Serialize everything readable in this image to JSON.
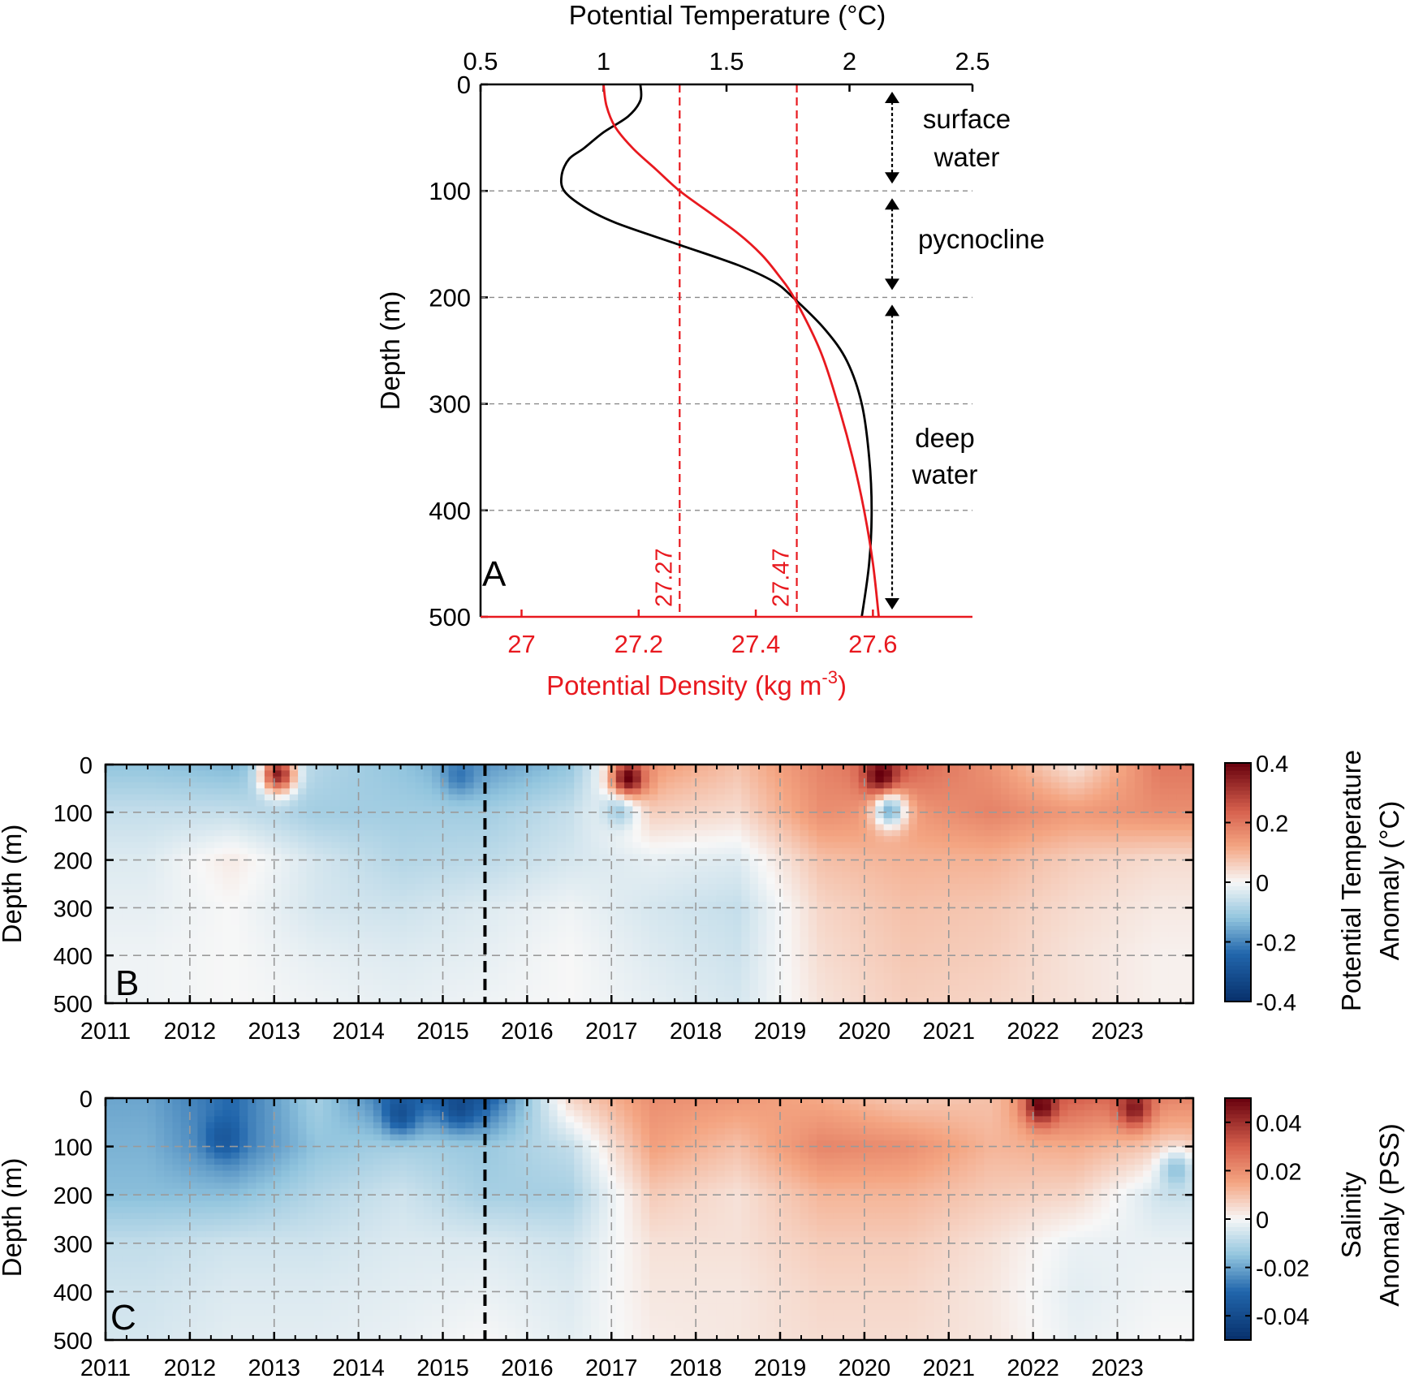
{
  "colors": {
    "temp_line": "#000000",
    "density_line": "#e8191f",
    "neg": "#08306b",
    "pos": "#67000d",
    "grid": "#8a8a8a"
  },
  "chart_data": [
    {
      "id": "A",
      "panel_letter": "A",
      "type": "line",
      "title": "Potential Temperature (°C)",
      "xlabel_top": "Potential Temperature (°C)",
      "xlim_top": [
        0.5,
        2.5
      ],
      "xticks_top": [
        "0.5",
        "1",
        "1.5",
        "2",
        "2.5"
      ],
      "xlabel_bottom": "Potential Density (kg m-3)",
      "xlabel_bottom_main": "Potential Density (kg m",
      "xlabel_bottom_sup": "-3",
      "xlabel_bottom_close": ")",
      "xlim_bottom": [
        26.93,
        27.77
      ],
      "xticks_bottom": [
        "27",
        "27.2",
        "27.4",
        "27.6"
      ],
      "ylabel": "Depth (m)",
      "ylim": [
        0,
        500
      ],
      "yticks": [
        "0",
        "100",
        "200",
        "300",
        "400",
        "500"
      ],
      "isopycnals": [
        {
          "density": 27.27,
          "label": "27.27"
        },
        {
          "density": 27.47,
          "label": "27.47"
        }
      ],
      "layers": [
        {
          "name": "surface-water",
          "lines": [
            "surface",
            "water"
          ],
          "top": 0,
          "bottom": 100
        },
        {
          "name": "pycnocline",
          "lines": [
            "pycnocline"
          ],
          "top": 100,
          "bottom": 200
        },
        {
          "name": "deep-water",
          "lines": [
            "deep",
            "water"
          ],
          "top": 200,
          "bottom": 500
        }
      ],
      "series": [
        {
          "name": "Potential Temperature",
          "axis": "top",
          "points": [
            [
              0,
              1.15
            ],
            [
              15,
              1.15
            ],
            [
              30,
              1.1
            ],
            [
              45,
              1.0
            ],
            [
              60,
              0.92
            ],
            [
              70,
              0.86
            ],
            [
              85,
              0.83
            ],
            [
              100,
              0.84
            ],
            [
              115,
              0.92
            ],
            [
              130,
              1.05
            ],
            [
              150,
              1.3
            ],
            [
              170,
              1.55
            ],
            [
              185,
              1.69
            ],
            [
              200,
              1.77
            ],
            [
              230,
              1.9
            ],
            [
              260,
              1.99
            ],
            [
              300,
              2.05
            ],
            [
              350,
              2.08
            ],
            [
              400,
              2.09
            ],
            [
              450,
              2.08
            ],
            [
              500,
              2.05
            ]
          ]
        },
        {
          "name": "Potential Density",
          "axis": "bottom",
          "points": [
            [
              0,
              27.14
            ],
            [
              20,
              27.145
            ],
            [
              40,
              27.16
            ],
            [
              60,
              27.19
            ],
            [
              80,
              27.23
            ],
            [
              100,
              27.27
            ],
            [
              120,
              27.32
            ],
            [
              140,
              27.37
            ],
            [
              160,
              27.41
            ],
            [
              180,
              27.44
            ],
            [
              200,
              27.465
            ],
            [
              250,
              27.51
            ],
            [
              300,
              27.54
            ],
            [
              350,
              27.565
            ],
            [
              400,
              27.585
            ],
            [
              450,
              27.6
            ],
            [
              500,
              27.61
            ]
          ]
        }
      ]
    },
    {
      "id": "B",
      "panel_letter": "B",
      "type": "heatmap",
      "title": "Potential Temperature Anomaly (°C)",
      "xlabel": "",
      "ylabel": "Depth (m)",
      "xlim": [
        2011,
        2023.9
      ],
      "xticks": [
        "2011",
        "2012",
        "2013",
        "2014",
        "2015",
        "2016",
        "2017",
        "2018",
        "2019",
        "2020",
        "2021",
        "2022",
        "2023"
      ],
      "ylim": [
        0,
        500
      ],
      "yticks": [
        "0",
        "100",
        "200",
        "300",
        "400",
        "500"
      ],
      "event_year": 2015.5,
      "colorbar": {
        "range": [
          -0.4,
          0.4
        ],
        "ticks": [
          "0.4",
          "0.2",
          "0",
          "-0.2",
          "-0.4"
        ],
        "label_lines": [
          "Potential Temperature",
          "Anomaly (°C)"
        ]
      },
      "year_columns": [
        2011.5,
        2012.5,
        2013.5,
        2014.5,
        2015.5,
        2016.5,
        2017.5,
        2018.5,
        2019.5,
        2020.5,
        2021.5,
        2022.5,
        2023.5
      ],
      "depth_rows": [
        0,
        100,
        200,
        300,
        400,
        500
      ],
      "values": [
        [
          -0.12,
          -0.14,
          -0.08,
          -0.12,
          -0.18,
          -0.12,
          0.14,
          0.08,
          0.18,
          0.24,
          0.15,
          0.02,
          0.2
        ],
        [
          -0.06,
          -0.06,
          -0.1,
          -0.1,
          -0.1,
          -0.06,
          0.06,
          0.04,
          0.16,
          0.14,
          0.18,
          0.14,
          0.16
        ],
        [
          -0.03,
          0.02,
          -0.04,
          -0.08,
          -0.07,
          -0.04,
          -0.02,
          -0.03,
          0.08,
          0.1,
          0.1,
          0.06,
          0.04
        ],
        [
          -0.02,
          0.0,
          -0.04,
          -0.05,
          -0.03,
          -0.01,
          -0.04,
          -0.06,
          0.05,
          0.08,
          0.07,
          0.04,
          0.02
        ],
        [
          -0.01,
          0.0,
          -0.02,
          -0.03,
          -0.02,
          0.0,
          -0.03,
          -0.05,
          0.04,
          0.07,
          0.06,
          0.03,
          0.01
        ],
        [
          -0.01,
          0.0,
          -0.01,
          -0.02,
          -0.01,
          0.0,
          -0.02,
          -0.04,
          0.03,
          0.06,
          0.05,
          0.03,
          0.01
        ]
      ],
      "hotspots": [
        {
          "year": 2013.05,
          "depth": 20,
          "value": 0.35
        },
        {
          "year": 2017.2,
          "depth": 30,
          "value": 0.42
        },
        {
          "year": 2020.2,
          "depth": 25,
          "value": 0.42
        },
        {
          "year": 2020.3,
          "depth": 95,
          "value": -0.15
        },
        {
          "year": 2017.1,
          "depth": 90,
          "value": -0.12
        },
        {
          "year": 2015.2,
          "depth": 20,
          "value": -0.22
        }
      ]
    },
    {
      "id": "C",
      "panel_letter": "C",
      "type": "heatmap",
      "title": "Salinity Anomaly (PSS)",
      "xlabel": "",
      "ylabel": "Depth (m)",
      "xlim": [
        2011,
        2023.9
      ],
      "xticks": [
        "2011",
        "2012",
        "2013",
        "2014",
        "2015",
        "2016",
        "2017",
        "2018",
        "2019",
        "2020",
        "2021",
        "2022",
        "2023"
      ],
      "ylim": [
        0,
        500
      ],
      "yticks": [
        "0",
        "100",
        "200",
        "300",
        "400",
        "500"
      ],
      "event_year": 2015.5,
      "colorbar": {
        "range": [
          -0.05,
          0.05
        ],
        "ticks": [
          "0.04",
          "0.02",
          "0",
          "-0.02",
          "-0.04"
        ],
        "label_lines": [
          "Salinity",
          "Anomaly (PSS)"
        ]
      },
      "year_columns": [
        2011.5,
        2012.5,
        2013.5,
        2014.5,
        2015.5,
        2016.5,
        2017.5,
        2018.5,
        2019.5,
        2020.5,
        2021.5,
        2022.5,
        2023.5
      ],
      "depth_rows": [
        0,
        100,
        200,
        300,
        400,
        500
      ],
      "values": [
        [
          -0.02,
          -0.03,
          -0.012,
          -0.03,
          -0.035,
          0.006,
          0.02,
          0.018,
          0.014,
          0.008,
          0.01,
          0.03,
          0.022
        ],
        [
          -0.018,
          -0.028,
          -0.015,
          -0.012,
          -0.014,
          -0.008,
          0.016,
          0.01,
          0.022,
          0.02,
          0.012,
          0.014,
          0.008
        ],
        [
          -0.016,
          -0.016,
          -0.01,
          -0.006,
          -0.012,
          -0.012,
          0.008,
          0.004,
          0.012,
          0.012,
          0.008,
          0.006,
          -0.006
        ],
        [
          -0.008,
          -0.006,
          -0.006,
          -0.004,
          -0.004,
          -0.006,
          0.004,
          0.004,
          0.008,
          0.008,
          0.004,
          -0.002,
          -0.002
        ],
        [
          -0.006,
          -0.004,
          -0.004,
          -0.003,
          -0.002,
          -0.004,
          0.003,
          0.003,
          0.006,
          0.006,
          0.003,
          -0.003,
          -0.001
        ],
        [
          -0.005,
          -0.003,
          -0.003,
          -0.002,
          0.0,
          -0.003,
          0.002,
          0.003,
          0.005,
          0.005,
          0.003,
          -0.002,
          0.0
        ]
      ],
      "hotspots": [
        {
          "year": 2022.1,
          "depth": 15,
          "value": 0.05
        },
        {
          "year": 2023.2,
          "depth": 20,
          "value": 0.045
        },
        {
          "year": 2015.2,
          "depth": 15,
          "value": -0.04
        },
        {
          "year": 2014.5,
          "depth": 30,
          "value": -0.038
        },
        {
          "year": 2012.4,
          "depth": 80,
          "value": -0.035
        },
        {
          "year": 2023.7,
          "depth": 150,
          "value": -0.015
        }
      ]
    }
  ]
}
